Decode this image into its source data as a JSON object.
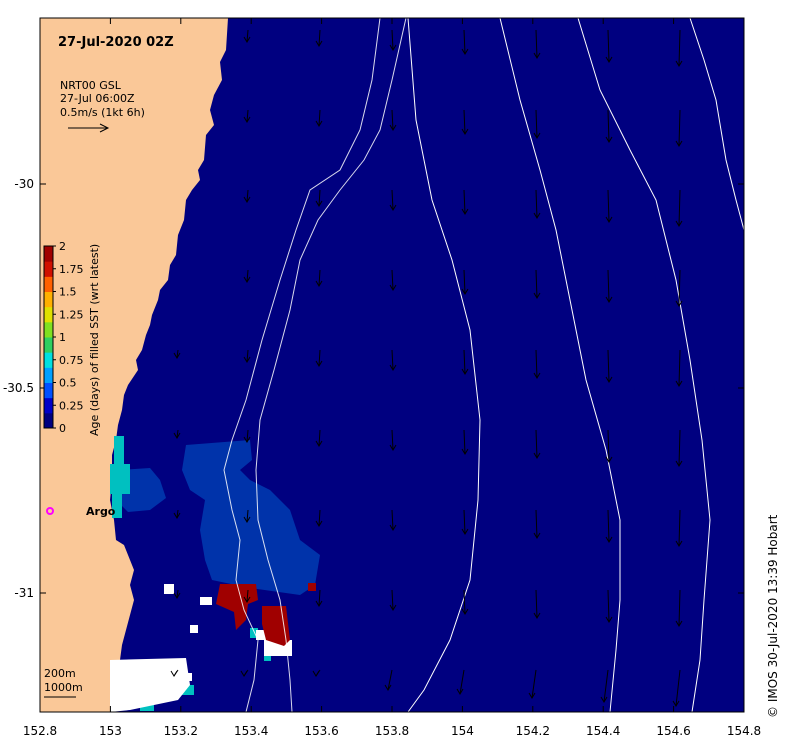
{
  "map": {
    "title": "27-Jul-2020 02Z",
    "current_legend": {
      "line1": "NRT00 GSL",
      "line2": "27-Jul 06:00Z",
      "line3": "0.5m/s (1kt 6h)"
    },
    "colorbar": {
      "label": "Age (days) of filled SST (wrt latest)",
      "ticks": [
        "2",
        "1.75",
        "1.5",
        "1.25",
        "1",
        "0.75",
        "0.5",
        "0.25",
        "0"
      ],
      "colors": [
        "#000080",
        "#0000c8",
        "#0050ff",
        "#00a0ff",
        "#00e0e0",
        "#30d060",
        "#80e020",
        "#e0e000",
        "#ffb000",
        "#ff6000",
        "#d01000",
        "#a00000"
      ]
    },
    "x_ticks": [
      "152.8",
      "153",
      "153.2",
      "153.4",
      "153.6",
      "153.8",
      "154",
      "154.2",
      "154.4",
      "154.6",
      "154.8"
    ],
    "y_ticks": [
      "-30",
      "-30.5",
      "-31"
    ],
    "argo_label": "Argo",
    "depth_legend": {
      "line1": "200m",
      "line2": "1000m"
    },
    "credit": "© IMOS 30-Jul-2020 13:39 Hobart",
    "colors": {
      "ocean": "#000080",
      "land": "#fac898",
      "filled_age_low": "#0033aa",
      "filled_age_high": "#a00000",
      "argo": "#ff00ff"
    }
  }
}
